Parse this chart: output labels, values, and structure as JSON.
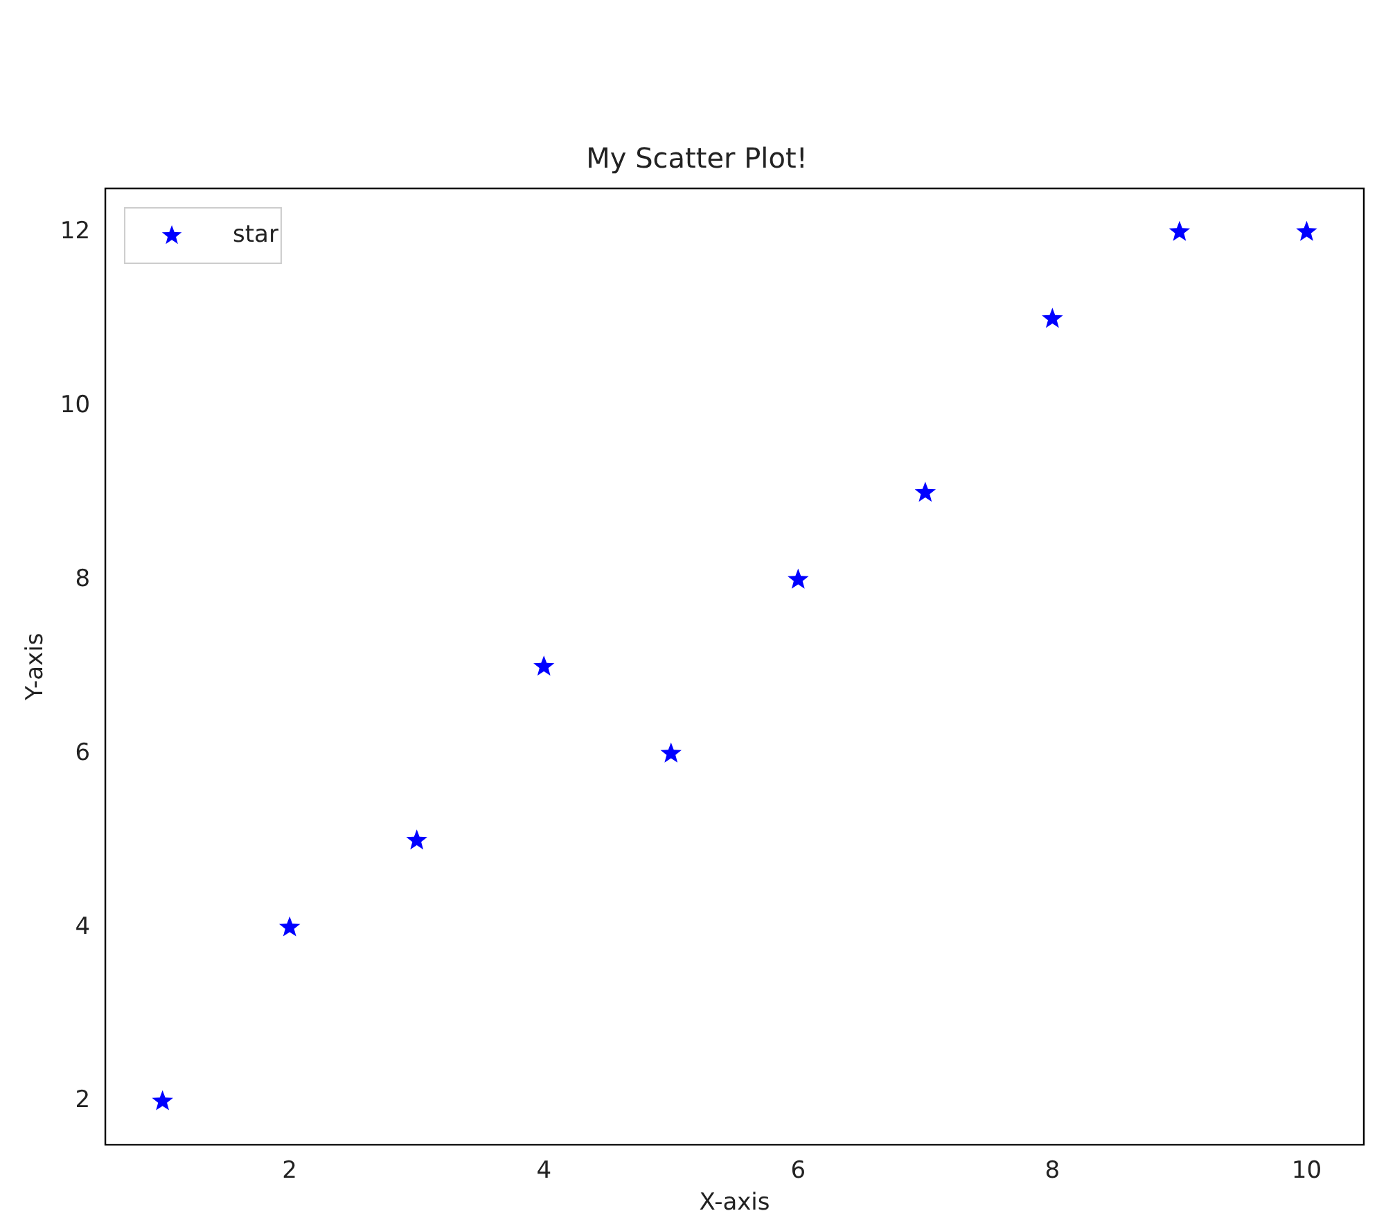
{
  "chart_data": {
    "type": "scatter",
    "title": "My Scatter Plot!",
    "xlabel": "X-axis",
    "ylabel": "Y-axis",
    "x": [
      1,
      2,
      3,
      4,
      5,
      6,
      7,
      8,
      9,
      10
    ],
    "series": [
      {
        "name": "star",
        "color": "#0000ff",
        "values": [
          2,
          4,
          5,
          7,
          6,
          8,
          9,
          11,
          12,
          12
        ]
      }
    ],
    "xlim": [
      0.55,
      10.45
    ],
    "xticks": [
      2,
      4,
      6,
      8,
      10
    ],
    "ylim": [
      1.5,
      12.5
    ],
    "yticks": [
      2,
      4,
      6,
      8,
      10,
      12
    ],
    "grid": false,
    "legend": "top left",
    "marker": "star"
  }
}
